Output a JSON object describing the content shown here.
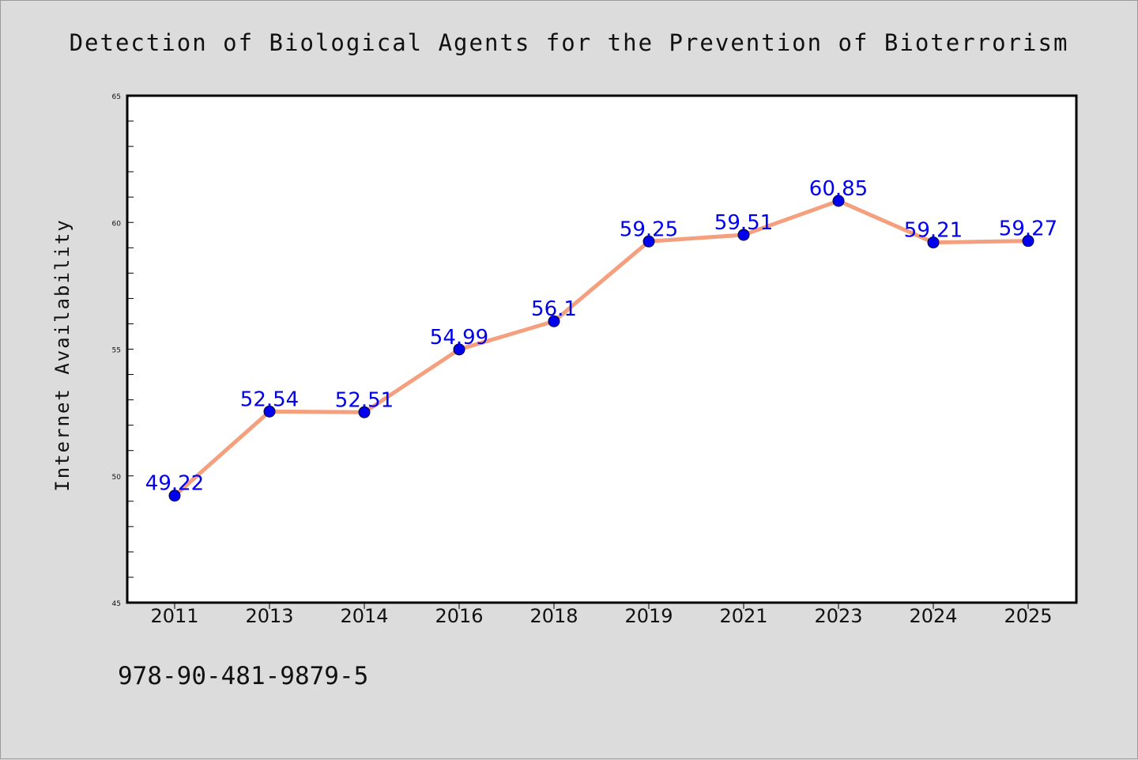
{
  "chart_data": {
    "type": "line",
    "title": "Detection of Biological Agents for the Prevention of Bioterrorism",
    "xlabel": "",
    "ylabel": "Internet Availability",
    "categories": [
      "2011",
      "2013",
      "2014",
      "2016",
      "2018",
      "2019",
      "2021",
      "2023",
      "2024",
      "2025"
    ],
    "series": [
      {
        "values": [
          49.22,
          52.54,
          52.51,
          54.99,
          56.1,
          59.25,
          59.51,
          60.85,
          59.21,
          59.27
        ],
        "data_labels": [
          "49.22",
          "52.54",
          "52.51",
          "54.99",
          "56.1",
          "59.25",
          "59.51",
          "60.85",
          "59.21",
          "59.27"
        ]
      }
    ],
    "ylim": [
      45,
      65
    ],
    "yticks": [
      45,
      50,
      55,
      60,
      65
    ],
    "ytick_labels": [
      "45",
      "50",
      "55",
      "60",
      "65"
    ],
    "grid": false,
    "legend": "none",
    "colors": {
      "line": "#f4a07e",
      "marker": "#0000ee",
      "data_label": "#0000ee",
      "figure_background": "#dcdcdc",
      "plot_background": "#ffffff"
    }
  },
  "footer": {
    "text": "978-90-481-9879-5"
  }
}
